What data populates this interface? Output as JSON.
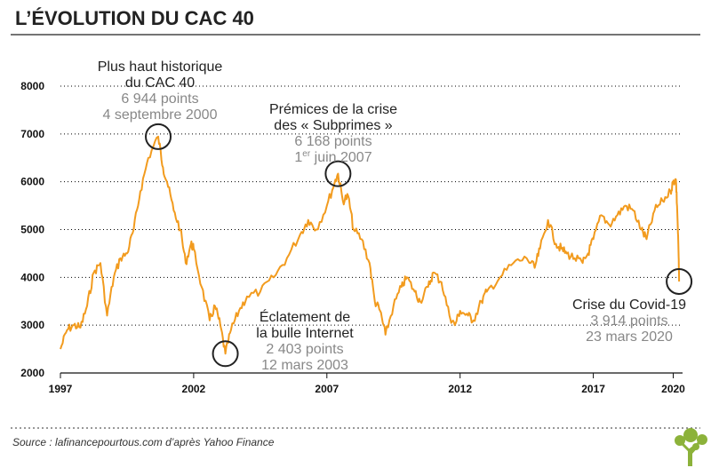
{
  "title": "L’ÉVOLUTION DU CAC 40",
  "source": "Source : lafinancepourtous.com d’après Yahoo Finance",
  "colors": {
    "line": "#f29b1e",
    "grid": "#000000",
    "marker": "#222222",
    "logo": "#8cb23a"
  },
  "chart_data": {
    "type": "line",
    "title": "L’ÉVOLUTION DU CAC 40",
    "xlabel": "",
    "ylabel": "",
    "xlim": [
      1997.0,
      2020.35
    ],
    "ylim": [
      2000,
      8000
    ],
    "grid": "horizontal dotted",
    "y_ticks": [
      "2000",
      "3000",
      "4000",
      "5000",
      "6000",
      "7000",
      "8000"
    ],
    "x_ticks": [
      "1997",
      "2002",
      "2007",
      "2012",
      "2017",
      "2020"
    ],
    "x_tick_values": [
      1997,
      2002,
      2007,
      2012,
      2017,
      2020
    ],
    "series": [
      {
        "x": [
          1997.0,
          1997.25,
          1997.5,
          1997.75,
          1998.0,
          1998.25,
          1998.5,
          1998.75,
          1999.0,
          1999.25,
          1999.5,
          1999.75,
          2000.0,
          2000.3,
          2000.67,
          2000.85,
          2001.0,
          2001.25,
          2001.5,
          2001.7,
          2001.9,
          2002.0,
          2002.3,
          2002.6,
          2002.8,
          2003.0,
          2003.19,
          2003.4,
          2003.7,
          2004.0,
          2004.5,
          2005.0,
          2005.5,
          2006.0,
          2006.3,
          2006.6,
          2007.0,
          2007.3,
          2007.42,
          2007.6,
          2007.8,
          2008.0,
          2008.3,
          2008.6,
          2008.8,
          2009.0,
          2009.2,
          2009.5,
          2009.8,
          2010.0,
          2010.3,
          2010.5,
          2010.8,
          2011.0,
          2011.3,
          2011.6,
          2011.8,
          2012.0,
          2012.3,
          2012.5,
          2012.8,
          2013.0,
          2013.5,
          2014.0,
          2014.5,
          2014.8,
          2015.0,
          2015.3,
          2015.6,
          2015.8,
          2016.0,
          2016.3,
          2016.6,
          2016.8,
          2017.0,
          2017.3,
          2017.6,
          2017.9,
          2018.2,
          2018.5,
          2018.8,
          2019.0,
          2019.3,
          2019.6,
          2019.9,
          2020.0,
          2020.1,
          2020.15,
          2020.2,
          2020.22
        ],
        "y": [
          2500,
          2900,
          3000,
          2950,
          3400,
          4100,
          4300,
          3200,
          4000,
          4400,
          4500,
          5000,
          5800,
          6500,
          6944,
          6300,
          6000,
          5400,
          5000,
          4300,
          4700,
          4600,
          3800,
          3100,
          3400,
          3000,
          2403,
          2900,
          3300,
          3600,
          3700,
          4000,
          4400,
          4900,
          5200,
          5000,
          5500,
          6000,
          6168,
          5600,
          5700,
          5000,
          4800,
          4300,
          3500,
          3300,
          2800,
          3400,
          3800,
          4000,
          3700,
          3500,
          3800,
          4100,
          3900,
          3200,
          3000,
          3300,
          3200,
          3100,
          3500,
          3700,
          4000,
          4300,
          4400,
          4200,
          4600,
          5200,
          4700,
          4600,
          4500,
          4400,
          4300,
          4500,
          4800,
          5300,
          5100,
          5300,
          5500,
          5400,
          5000,
          4800,
          5400,
          5600,
          5800,
          6000,
          6050,
          5400,
          4500,
          3914
        ]
      }
    ],
    "annotations": [
      {
        "x": 2000.67,
        "y": 6944,
        "lines": [
          "Plus haut historique",
          "du CAC 40"
        ],
        "detail": [
          "6 944 points",
          "4 septembre 2000"
        ]
      },
      {
        "x": 2003.19,
        "y": 2403,
        "lines": [
          "Éclatement de",
          "la bulle Internet"
        ],
        "detail": [
          "2 403 points",
          "12 mars 2003"
        ]
      },
      {
        "x": 2007.42,
        "y": 6168,
        "lines": [
          "Prémices de la crise",
          "des « Subprimes »"
        ],
        "detail": [
          "6 168 points",
          "1er juin 2007"
        ]
      },
      {
        "x": 2020.22,
        "y": 3914,
        "lines": [
          "Crise du Covid-19"
        ],
        "detail": [
          "3 914 points",
          "23 mars 2020"
        ]
      }
    ]
  }
}
